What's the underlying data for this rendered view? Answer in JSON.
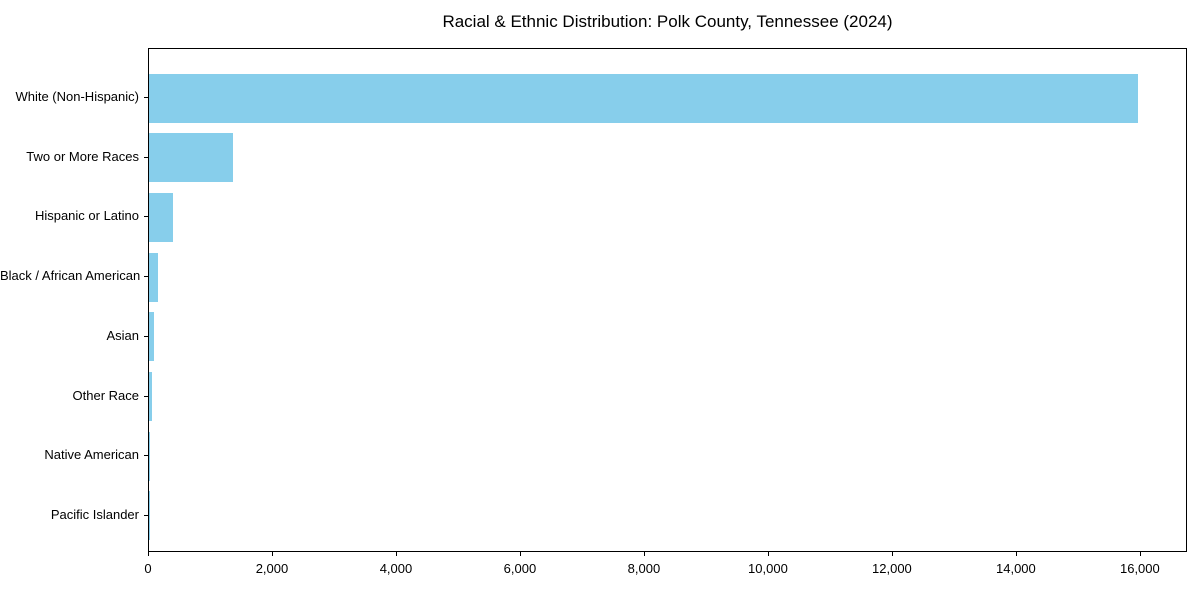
{
  "chart_data": {
    "type": "bar",
    "orientation": "horizontal",
    "title": "Racial & Ethnic Distribution: Polk County, Tennessee (2024)",
    "categories": [
      "White (Non-Hispanic)",
      "Two or More Races",
      "Hispanic or Latino",
      "Black / African American",
      "Asian",
      "Other Race",
      "Native American",
      "Pacific Islander"
    ],
    "values": [
      15950,
      1355,
      390,
      145,
      80,
      50,
      15,
      5
    ],
    "xlabel": "",
    "ylabel": "",
    "xlim": [
      0,
      16760
    ],
    "xticks": [
      0,
      2000,
      4000,
      6000,
      8000,
      10000,
      12000,
      14000,
      16000
    ],
    "xtick_labels": [
      "0",
      "2,000",
      "4,000",
      "6,000",
      "8,000",
      "10,000",
      "12,000",
      "14,000",
      "16,000"
    ],
    "bar_color": "#87CEEB",
    "axis_color": "#000000",
    "background_color": "#ffffff",
    "grid": false,
    "legend": null
  }
}
